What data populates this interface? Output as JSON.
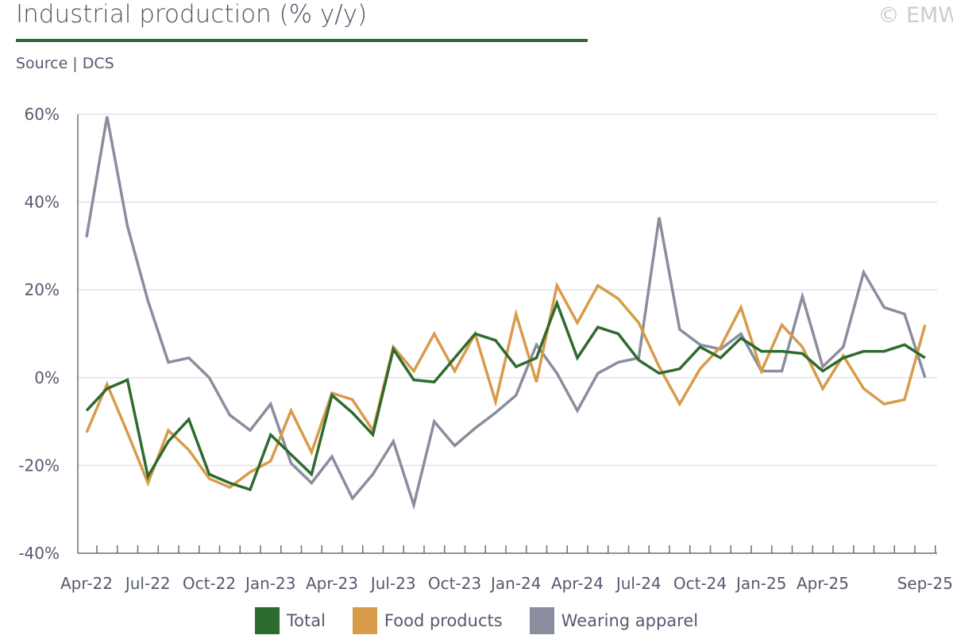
{
  "header": {
    "title": "Industrial production (% y/y)",
    "source": "Source | DCS",
    "copyright": "© EMW"
  },
  "colors": {
    "Total": "#2e6b2e",
    "Food products": "#d89b4a",
    "Wearing apparel": "#8a8d9e",
    "title_rule": "#2e6b2e",
    "grid": "#dde3ec",
    "axis": "#6a6e80"
  },
  "chart_data": {
    "type": "line",
    "title": "Industrial production (% y/y)",
    "xlabel": "",
    "ylabel": "",
    "ylim": [
      -40,
      60
    ],
    "yticks": [
      -40,
      -20,
      0,
      20,
      40,
      60
    ],
    "ytick_labels": [
      "-40%",
      "-20%",
      "0%",
      "20%",
      "40%",
      "60%"
    ],
    "grid": "horizontal",
    "legend_position": "bottom",
    "x": [
      "Apr-22",
      "May-22",
      "Jun-22",
      "Jul-22",
      "Aug-22",
      "Sep-22",
      "Oct-22",
      "Nov-22",
      "Dec-22",
      "Jan-23",
      "Feb-23",
      "Mar-23",
      "Apr-23",
      "May-23",
      "Jun-23",
      "Jul-23",
      "Aug-23",
      "Sep-23",
      "Oct-23",
      "Nov-23",
      "Dec-23",
      "Jan-24",
      "Feb-24",
      "Mar-24",
      "Apr-24",
      "May-24",
      "Jun-24",
      "Jul-24",
      "Aug-24",
      "Sep-24",
      "Oct-24",
      "Nov-24",
      "Dec-24",
      "Jan-25",
      "Feb-25",
      "Mar-25",
      "Apr-25",
      "May-25",
      "Jun-25",
      "Jul-25",
      "Aug-25",
      "Sep-25"
    ],
    "xtick_labels": [
      "Apr-22",
      "Jul-22",
      "Oct-22",
      "Jan-23",
      "Apr-23",
      "Jul-23",
      "Oct-23",
      "Jan-24",
      "Apr-24",
      "Jul-24",
      "Oct-24",
      "Jan-25",
      "Apr-25",
      "Sep-25"
    ],
    "series": [
      {
        "name": "Total",
        "values": [
          -7.5,
          -2.5,
          -0.5,
          -22.5,
          -14.5,
          -9.5,
          -22,
          -24,
          -25.5,
          -13,
          -17.5,
          -22,
          -4,
          -8,
          -13,
          6.5,
          -0.5,
          -1,
          4.5,
          10,
          8.5,
          2.5,
          4.5,
          17,
          4.5,
          11.5,
          10,
          4,
          1,
          2,
          7,
          4.5,
          9,
          6,
          6,
          5.5,
          1.5,
          4.5,
          6,
          6,
          7.5,
          4.5
        ]
      },
      {
        "name": "Food products",
        "values": [
          -12.5,
          -1.5,
          -12.5,
          -24,
          -12,
          -16.5,
          -23,
          -25,
          -21.5,
          -19,
          -7.5,
          -17,
          -3.5,
          -5,
          -12,
          7,
          1.5,
          10,
          1.5,
          10,
          -5.5,
          14.5,
          -1,
          21,
          12.5,
          21,
          18,
          12.5,
          2.5,
          -6,
          2,
          7,
          16,
          1.5,
          12,
          7,
          -2.5,
          5,
          -2.5,
          -6,
          -5,
          12
        ]
      },
      {
        "name": "Wearing apparel",
        "values": [
          32,
          59.5,
          34.5,
          17.5,
          3.5,
          4.5,
          0,
          -8.5,
          -12,
          -6,
          -19.5,
          -24,
          -18,
          -27.5,
          -22,
          -14.5,
          -29,
          -10,
          -15.5,
          -11.5,
          -8,
          -4,
          7.5,
          1,
          -7.5,
          1,
          3.5,
          4.5,
          36.5,
          11,
          7.5,
          6.5,
          10,
          1.5,
          1.5,
          18.5,
          2.5,
          7,
          24,
          16,
          14.5,
          0
        ]
      }
    ]
  },
  "legend": {
    "items": [
      {
        "label": "Total",
        "color": "#2e6b2e"
      },
      {
        "label": "Food products",
        "color": "#d89b4a"
      },
      {
        "label": "Wearing apparel",
        "color": "#8a8d9e"
      }
    ]
  }
}
